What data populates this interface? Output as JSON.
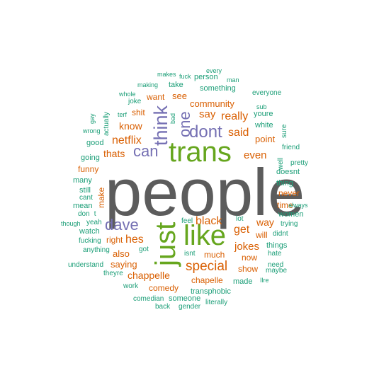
{
  "colors": {
    "teal": "#1b9e77",
    "orange": "#d95f02",
    "purple": "#7570b3",
    "green": "#66a61e",
    "gray": "#5c5c5c"
  },
  "words": [
    {
      "text": "people",
      "weight": 1.0,
      "color": "gray",
      "vertical": false
    },
    {
      "text": "trans",
      "weight": 0.62,
      "color": "green",
      "vertical": false
    },
    {
      "text": "like",
      "weight": 0.5,
      "color": "green",
      "vertical": false
    },
    {
      "text": "just",
      "weight": 0.5,
      "color": "green",
      "vertical": true
    },
    {
      "text": "think",
      "weight": 0.32,
      "color": "purple",
      "vertical": true
    },
    {
      "text": "dont",
      "weight": 0.3,
      "color": "purple",
      "vertical": false
    },
    {
      "text": "one",
      "weight": 0.27,
      "color": "purple",
      "vertical": true
    },
    {
      "text": "can",
      "weight": 0.27,
      "color": "purple",
      "vertical": false
    },
    {
      "text": "dave",
      "weight": 0.26,
      "color": "purple",
      "vertical": false
    },
    {
      "text": "special",
      "weight": 0.24,
      "color": "orange",
      "vertical": false
    },
    {
      "text": "netflix",
      "weight": 0.2,
      "color": "orange",
      "vertical": false
    },
    {
      "text": "said",
      "weight": 0.2,
      "color": "orange",
      "vertical": false
    },
    {
      "text": "black",
      "weight": 0.2,
      "color": "orange",
      "vertical": false
    },
    {
      "text": "get",
      "weight": 0.2,
      "color": "orange",
      "vertical": false
    },
    {
      "text": "really",
      "weight": 0.18,
      "color": "orange",
      "vertical": false
    },
    {
      "text": "hes",
      "weight": 0.19,
      "color": "orange",
      "vertical": false
    },
    {
      "text": "jokes",
      "weight": 0.18,
      "color": "orange",
      "vertical": false
    },
    {
      "text": "even",
      "weight": 0.18,
      "color": "orange",
      "vertical": false
    },
    {
      "text": "say",
      "weight": 0.17,
      "color": "orange",
      "vertical": false
    },
    {
      "text": "know",
      "weight": 0.16,
      "color": "orange",
      "vertical": false
    },
    {
      "text": "thats",
      "weight": 0.16,
      "color": "orange",
      "vertical": false
    },
    {
      "text": "chappelle",
      "weight": 0.15,
      "color": "orange",
      "vertical": false
    },
    {
      "text": "way",
      "weight": 0.15,
      "color": "orange",
      "vertical": false
    },
    {
      "text": "point",
      "weight": 0.14,
      "color": "orange",
      "vertical": false
    },
    {
      "text": "community",
      "weight": 0.13,
      "color": "orange",
      "vertical": false
    },
    {
      "text": "saying",
      "weight": 0.13,
      "color": "orange",
      "vertical": false
    },
    {
      "text": "also",
      "weight": 0.13,
      "color": "orange",
      "vertical": false
    },
    {
      "text": "see",
      "weight": 0.13,
      "color": "orange",
      "vertical": false
    },
    {
      "text": "comedy",
      "weight": 0.12,
      "color": "orange",
      "vertical": false
    },
    {
      "text": "shit",
      "weight": 0.12,
      "color": "orange",
      "vertical": false
    },
    {
      "text": "want",
      "weight": 0.12,
      "color": "orange",
      "vertical": false
    },
    {
      "text": "chapelle",
      "weight": 0.12,
      "color": "orange",
      "vertical": false
    },
    {
      "text": "much",
      "weight": 0.12,
      "color": "orange",
      "vertical": false
    },
    {
      "text": "never",
      "weight": 0.12,
      "color": "orange",
      "vertical": false
    },
    {
      "text": "right",
      "weight": 0.12,
      "color": "orange",
      "vertical": false
    },
    {
      "text": "time",
      "weight": 0.12,
      "color": "orange",
      "vertical": false
    },
    {
      "text": "now",
      "weight": 0.12,
      "color": "orange",
      "vertical": false
    },
    {
      "text": "show",
      "weight": 0.11,
      "color": "orange",
      "vertical": false
    },
    {
      "text": "will",
      "weight": 0.11,
      "color": "orange",
      "vertical": false
    },
    {
      "text": "funny",
      "weight": 0.11,
      "color": "orange",
      "vertical": false
    },
    {
      "text": "make",
      "weight": 0.11,
      "color": "orange",
      "vertical": true
    },
    {
      "text": "made",
      "weight": 0.1,
      "color": "teal",
      "vertical": false
    },
    {
      "text": "something",
      "weight": 0.1,
      "color": "teal",
      "vertical": false
    },
    {
      "text": "white",
      "weight": 0.1,
      "color": "teal",
      "vertical": false
    },
    {
      "text": "good",
      "weight": 0.1,
      "color": "teal",
      "vertical": false
    },
    {
      "text": "doesnt",
      "weight": 0.1,
      "color": "teal",
      "vertical": false
    },
    {
      "text": "thing",
      "weight": 0.1,
      "color": "teal",
      "vertical": false
    },
    {
      "text": "watch",
      "weight": 0.1,
      "color": "teal",
      "vertical": false
    },
    {
      "text": "someone",
      "weight": 0.1,
      "color": "teal",
      "vertical": false
    },
    {
      "text": "transphobic",
      "weight": 0.1,
      "color": "teal",
      "vertical": false
    },
    {
      "text": "things",
      "weight": 0.09,
      "color": "teal",
      "vertical": false
    },
    {
      "text": "youre",
      "weight": 0.09,
      "color": "teal",
      "vertical": false
    },
    {
      "text": "women",
      "weight": 0.09,
      "color": "teal",
      "vertical": false
    },
    {
      "text": "going",
      "weight": 0.09,
      "color": "teal",
      "vertical": false
    },
    {
      "text": "still",
      "weight": 0.09,
      "color": "teal",
      "vertical": false
    },
    {
      "text": "mean",
      "weight": 0.09,
      "color": "teal",
      "vertical": false
    },
    {
      "text": "person",
      "weight": 0.09,
      "color": "teal",
      "vertical": false
    },
    {
      "text": "take",
      "weight": 0.09,
      "color": "teal",
      "vertical": false
    },
    {
      "text": "many",
      "weight": 0.09,
      "color": "teal",
      "vertical": false
    },
    {
      "text": "isnt",
      "weight": 0.08,
      "color": "teal",
      "vertical": false
    },
    {
      "text": "lot",
      "weight": 0.08,
      "color": "teal",
      "vertical": false
    },
    {
      "text": "got",
      "weight": 0.08,
      "color": "teal",
      "vertical": false
    },
    {
      "text": "dont",
      "weight": 0.08,
      "color": "teal",
      "vertical": false
    },
    {
      "text": "joke",
      "weight": 0.08,
      "color": "teal",
      "vertical": false
    },
    {
      "text": "didnt",
      "weight": 0.08,
      "color": "teal",
      "vertical": false
    },
    {
      "text": "well",
      "weight": 0.08,
      "color": "teal",
      "vertical": true
    },
    {
      "text": "cant",
      "weight": 0.08,
      "color": "teal",
      "vertical": false
    },
    {
      "text": "actually",
      "weight": 0.07,
      "color": "teal",
      "vertical": true
    },
    {
      "text": "yeah",
      "weight": 0.07,
      "color": "teal",
      "vertical": false
    },
    {
      "text": "feel",
      "weight": 0.07,
      "color": "teal",
      "vertical": false
    },
    {
      "text": "need",
      "weight": 0.07,
      "color": "teal",
      "vertical": false
    },
    {
      "text": "hate",
      "weight": 0.07,
      "color": "teal",
      "vertical": false
    },
    {
      "text": "trying",
      "weight": 0.07,
      "color": "teal",
      "vertical": false
    },
    {
      "text": "friend",
      "weight": 0.07,
      "color": "teal",
      "vertical": false
    },
    {
      "text": "everyone",
      "weight": 0.07,
      "color": "teal",
      "vertical": false
    },
    {
      "text": "literally",
      "weight": 0.07,
      "color": "teal",
      "vertical": false
    },
    {
      "text": "comedian",
      "weight": 0.07,
      "color": "teal",
      "vertical": false
    },
    {
      "text": "gender",
      "weight": 0.07,
      "color": "teal",
      "vertical": false
    },
    {
      "text": "anything",
      "weight": 0.07,
      "color": "teal",
      "vertical": false
    },
    {
      "text": "fucking",
      "weight": 0.07,
      "color": "teal",
      "vertical": false
    },
    {
      "text": "theyre",
      "weight": 0.07,
      "color": "teal",
      "vertical": false
    },
    {
      "text": "work",
      "weight": 0.07,
      "color": "teal",
      "vertical": false
    },
    {
      "text": "back",
      "weight": 0.07,
      "color": "teal",
      "vertical": false
    },
    {
      "text": "understand",
      "weight": 0.07,
      "color": "teal",
      "vertical": false
    },
    {
      "text": "maybe",
      "weight": 0.07,
      "color": "teal",
      "vertical": false
    },
    {
      "text": "pretty",
      "weight": 0.07,
      "color": "teal",
      "vertical": false
    },
    {
      "text": "sure",
      "weight": 0.07,
      "color": "teal",
      "vertical": true
    },
    {
      "text": "whole",
      "weight": 0.06,
      "color": "teal",
      "vertical": false
    },
    {
      "text": "terf",
      "weight": 0.06,
      "color": "teal",
      "vertical": false
    },
    {
      "text": "gay",
      "weight": 0.06,
      "color": "teal",
      "vertical": true
    },
    {
      "text": "wrong",
      "weight": 0.06,
      "color": "teal",
      "vertical": false
    },
    {
      "text": "making",
      "weight": 0.06,
      "color": "teal",
      "vertical": false
    },
    {
      "text": "makes",
      "weight": 0.06,
      "color": "teal",
      "vertical": false
    },
    {
      "text": "fuck",
      "weight": 0.06,
      "color": "teal",
      "vertical": false
    },
    {
      "text": "every",
      "weight": 0.06,
      "color": "teal",
      "vertical": false
    },
    {
      "text": "man",
      "weight": 0.06,
      "color": "teal",
      "vertical": false
    },
    {
      "text": "sub",
      "weight": 0.06,
      "color": "teal",
      "vertical": false
    },
    {
      "text": "bad",
      "weight": 0.06,
      "color": "teal",
      "vertical": true
    },
    {
      "text": "though",
      "weight": 0.06,
      "color": "teal",
      "vertical": false
    },
    {
      "text": "always",
      "weight": 0.06,
      "color": "teal",
      "vertical": false
    },
    {
      "text": "Ilre",
      "weight": 0.06,
      "color": "teal",
      "vertical": false
    }
  ]
}
